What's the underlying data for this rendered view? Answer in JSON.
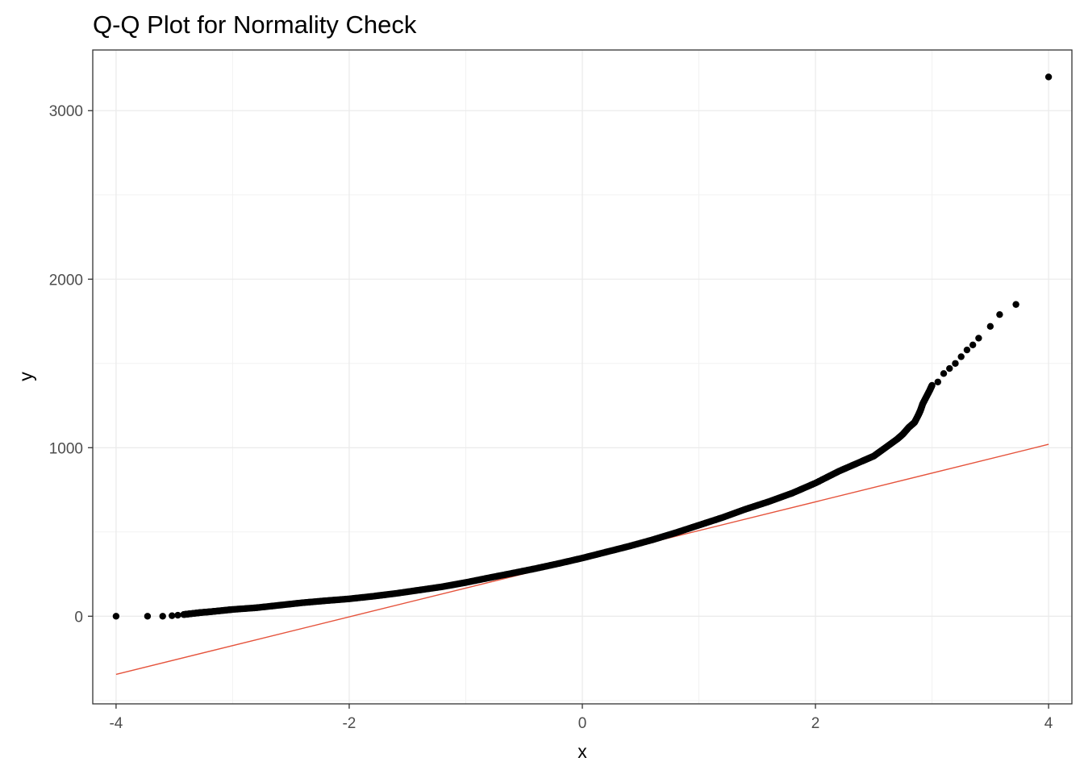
{
  "chart_data": {
    "type": "scatter",
    "title": "Q-Q Plot for Normality Check",
    "xlabel": "x",
    "ylabel": "y",
    "xlim": [
      -4.2,
      4.2
    ],
    "ylim": [
      -520,
      3360
    ],
    "x_ticks": [
      -4,
      -2,
      0,
      2,
      4
    ],
    "x_tick_labels": [
      "-4",
      "-2",
      "0",
      "2",
      "4"
    ],
    "y_ticks": [
      0,
      1000,
      2000,
      3000
    ],
    "y_tick_labels": [
      "0",
      "1000",
      "2000",
      "3000"
    ],
    "grid": true,
    "point_color": "#000000",
    "line_color": "#e5533c",
    "reference_line": {
      "x": [
        -4,
        4
      ],
      "y": [
        -345,
        1020
      ]
    },
    "points": {
      "x": [
        -4.0,
        -3.73,
        -3.6,
        -3.52,
        -3.47,
        -3.42,
        -3.37,
        -3.32,
        -3.27,
        -3.2,
        -3.1,
        -3.0,
        -2.8,
        -2.6,
        -2.4,
        -2.2,
        -2.0,
        -1.8,
        -1.6,
        -1.4,
        -1.2,
        -1.0,
        -0.8,
        -0.6,
        -0.4,
        -0.2,
        0.0,
        0.2,
        0.4,
        0.6,
        0.8,
        1.0,
        1.2,
        1.4,
        1.6,
        1.8,
        2.0,
        2.2,
        2.4,
        2.5,
        2.6,
        2.7,
        2.75,
        2.8,
        2.85,
        2.88,
        2.9,
        2.92,
        2.95,
        2.98,
        3.0,
        3.05,
        3.1,
        3.15,
        3.2,
        3.25,
        3.3,
        3.35,
        3.4,
        3.5,
        3.58,
        3.72,
        4.0
      ],
      "y": [
        0,
        0,
        0,
        3,
        6,
        10,
        14,
        18,
        22,
        26,
        33,
        40,
        50,
        65,
        80,
        92,
        103,
        118,
        135,
        155,
        175,
        200,
        228,
        255,
        283,
        313,
        345,
        380,
        415,
        453,
        495,
        540,
        585,
        635,
        680,
        730,
        790,
        860,
        920,
        950,
        1000,
        1050,
        1080,
        1120,
        1150,
        1190,
        1220,
        1260,
        1300,
        1340,
        1370,
        1390,
        1440,
        1470,
        1500,
        1540,
        1580,
        1610,
        1650,
        1720,
        1790,
        1850,
        3200
      ]
    }
  }
}
